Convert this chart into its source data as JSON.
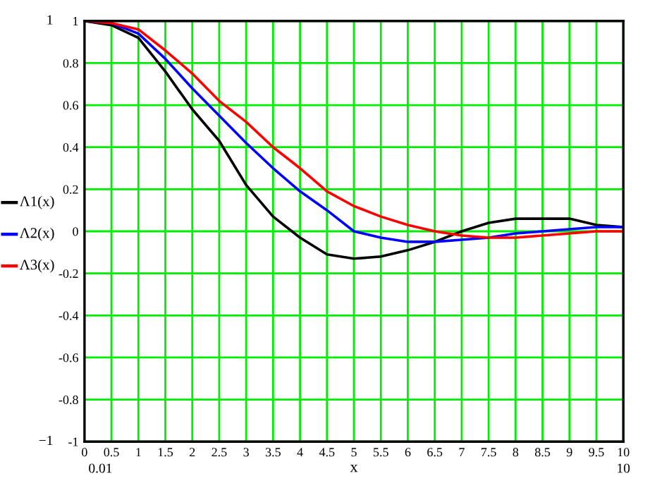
{
  "chart_data": {
    "type": "line",
    "xlabel": "x",
    "x": [
      0,
      0.5,
      1,
      1.5,
      2,
      2.5,
      3,
      3.5,
      4,
      4.5,
      5,
      5.5,
      6,
      6.5,
      7,
      7.5,
      8,
      8.5,
      9,
      9.5,
      10
    ],
    "series": [
      {
        "name": "Λ1(x)",
        "color": "#000000",
        "values": [
          1,
          0.98,
          0.92,
          0.76,
          0.58,
          0.43,
          0.22,
          0.07,
          -0.03,
          -0.11,
          -0.13,
          -0.12,
          -0.09,
          -0.05,
          0.0,
          0.04,
          0.06,
          0.06,
          0.06,
          0.03,
          0.02
        ]
      },
      {
        "name": "Λ2(x)",
        "color": "#0000ff",
        "values": [
          1,
          0.99,
          0.94,
          0.82,
          0.68,
          0.55,
          0.42,
          0.3,
          0.19,
          0.1,
          0.0,
          -0.03,
          -0.05,
          -0.05,
          -0.04,
          -0.03,
          -0.01,
          0.0,
          0.01,
          0.02,
          0.02
        ]
      },
      {
        "name": "Λ3(x)",
        "color": "#ff0000",
        "values": [
          1,
          0.99,
          0.96,
          0.86,
          0.75,
          0.62,
          0.52,
          0.4,
          0.3,
          0.19,
          0.12,
          0.07,
          0.03,
          0.0,
          -0.02,
          -0.03,
          -0.03,
          -0.02,
          -0.01,
          0.0,
          0.0
        ]
      }
    ],
    "xlim": [
      0,
      10
    ],
    "xticks": [
      0,
      0.5,
      1,
      1.5,
      2,
      2.5,
      3,
      3.5,
      4,
      4.5,
      5,
      5.5,
      6,
      6.5,
      7,
      7.5,
      8,
      8.5,
      9,
      9.5,
      10
    ],
    "ylim": [
      -1,
      1
    ],
    "yticks": [
      -1,
      -0.8,
      -0.6,
      -0.4,
      -0.2,
      0,
      0.2,
      0.4,
      0.6,
      0.8,
      1
    ],
    "grid": true,
    "legend": "left",
    "marker": "none",
    "line_style": "solid",
    "annotations": [
      "1",
      "−1",
      "0.01",
      "10"
    ]
  }
}
